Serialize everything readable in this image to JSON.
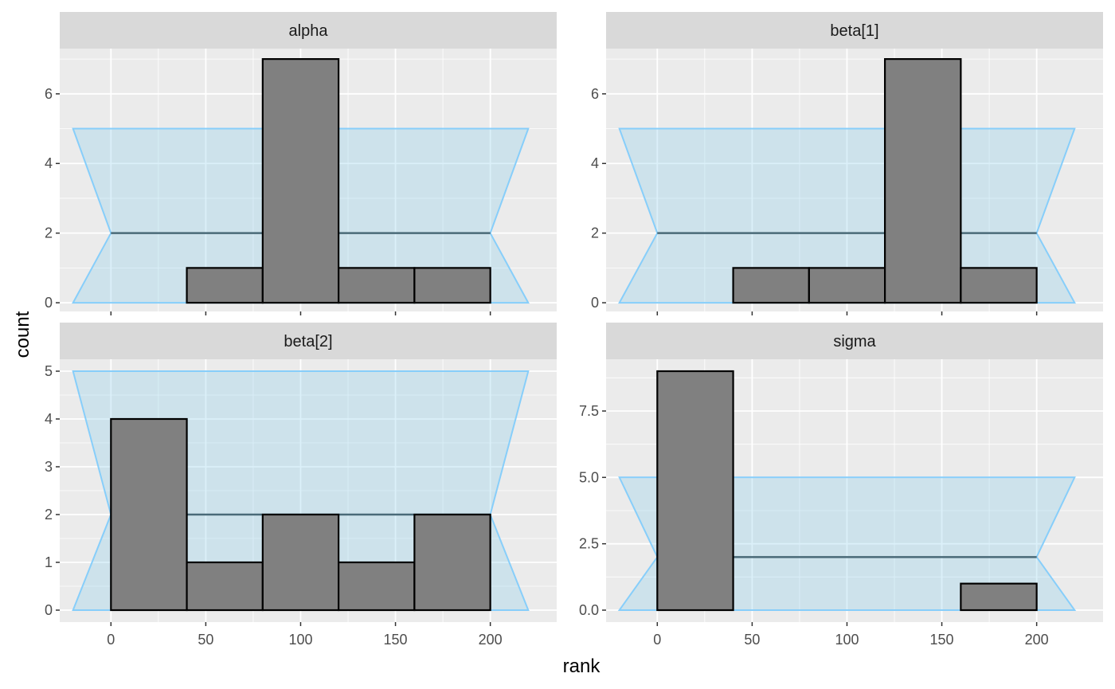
{
  "chart_data": {
    "type": "bar",
    "subtype": "sbc-rank-histogram",
    "xlabel": "rank",
    "ylabel": "count",
    "facet_layout": "2x2",
    "shared_x_axis": true,
    "x_ticks": [
      0,
      50,
      100,
      150,
      200
    ],
    "xlim": [
      -27,
      235
    ],
    "bin_edges": [
      0,
      40,
      80,
      120,
      160,
      200
    ],
    "confidence_band": {
      "expected": 2,
      "lower": 0,
      "upper": 5,
      "x_extent": [
        -20,
        220
      ]
    },
    "colors": {
      "bar_fill": "#808080",
      "bar_outline": "#000000",
      "band_fill": "#87ceeb",
      "band_outline": "#87cefa",
      "expected_line": "#4a6a78",
      "panel_bg": "#ebebeb",
      "strip_bg": "#d9d9d9",
      "grid": "#ffffff"
    },
    "panels": [
      {
        "title": "alpha",
        "counts": [
          0,
          1,
          7,
          1,
          1
        ],
        "ylim": [
          -0.25,
          7.3
        ],
        "y_ticks": [
          "0",
          "2",
          "4",
          "6"
        ]
      },
      {
        "title": "beta[1]",
        "counts": [
          0,
          1,
          1,
          7,
          1
        ],
        "ylim": [
          -0.25,
          7.3
        ],
        "y_ticks": [
          "0",
          "2",
          "4",
          "6"
        ]
      },
      {
        "title": "beta[2]",
        "counts": [
          4,
          1,
          2,
          1,
          2
        ],
        "ylim": [
          -0.25,
          5.25
        ],
        "y_ticks": [
          "0",
          "1",
          "2",
          "3",
          "4",
          "5"
        ]
      },
      {
        "title": "sigma",
        "counts": [
          9,
          0,
          0,
          0,
          1
        ],
        "ylim": [
          -0.45,
          9.45
        ],
        "y_ticks": [
          "0.0",
          "2.5",
          "5.0",
          "7.5"
        ]
      }
    ]
  }
}
